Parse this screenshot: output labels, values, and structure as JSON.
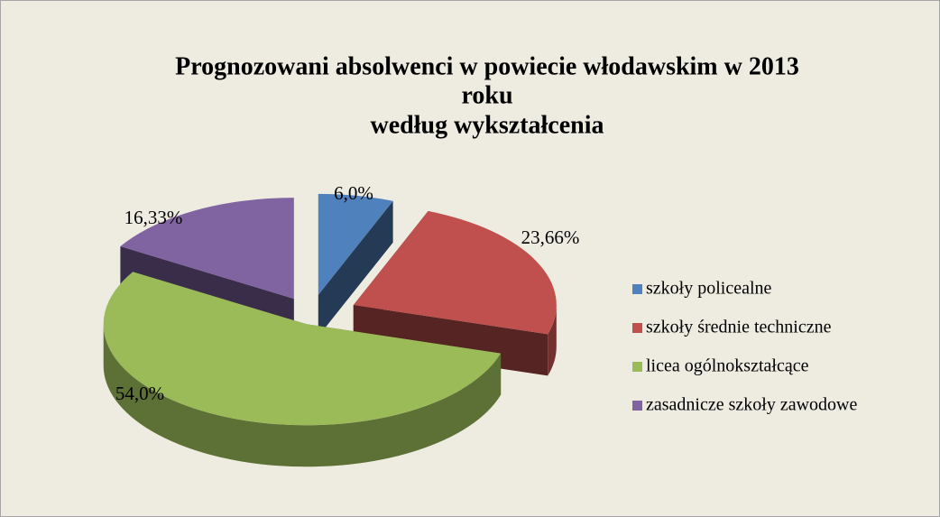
{
  "chart_data": {
    "type": "pie3d",
    "title": [
      "Prognozowani  absolwenci w powiecie włodawskim w 2013",
      "roku",
      "według wykształcenia"
    ],
    "categories": [
      "szkoły policealne",
      "szkoły średnie techniczne",
      "licea ogólnokształcące",
      "zasadnicze szkoły zawodowe"
    ],
    "values": [
      6.0,
      23.66,
      54.0,
      16.33
    ],
    "value_labels": [
      "6,0%",
      "23,66%",
      "54,0%",
      "16,33%"
    ],
    "colors": [
      "#4f81bd",
      "#c0504d",
      "#9bbb59",
      "#8064a2"
    ],
    "legend": "right"
  }
}
